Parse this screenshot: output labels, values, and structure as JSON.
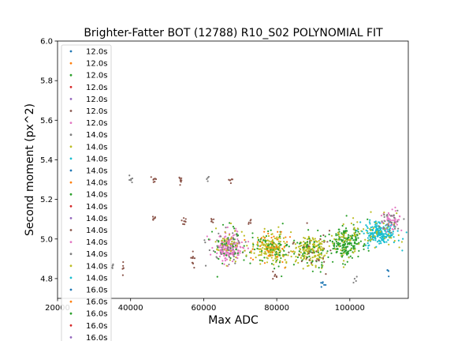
{
  "chart_data": {
    "type": "scatter",
    "title": "Brighter-Fatter BOT (12788) R10_S02 POLYNOMIAL FIT",
    "xlabel": "Max ADC",
    "ylabel": "Second moment (px^2)",
    "xlim": [
      20000,
      116000
    ],
    "ylim": [
      4.7,
      6.0
    ],
    "xticks": [
      20000,
      40000,
      60000,
      80000,
      100000
    ],
    "xtick_labels": [
      "20000",
      "40000",
      "60000",
      "80000",
      "100000"
    ],
    "yticks": [
      4.8,
      5.0,
      5.2,
      5.4,
      5.6,
      5.8,
      6.0
    ],
    "ytick_labels": [
      "4.8",
      "5.0",
      "5.2",
      "5.4",
      "5.6",
      "5.8",
      "6.0"
    ],
    "grid": false,
    "legend_position": "upper-left",
    "palette": [
      "#1f77b4",
      "#ff7f0e",
      "#2ca02c",
      "#d62728",
      "#9467bd",
      "#8c564b",
      "#e377c2",
      "#7f7f7f",
      "#bcbd22",
      "#17becf"
    ],
    "legend": [
      "12.0s",
      "12.0s",
      "12.0s",
      "12.0s",
      "12.0s",
      "12.0s",
      "12.0s",
      "14.0s",
      "14.0s",
      "14.0s",
      "14.0s",
      "14.0s",
      "14.0s",
      "14.0s",
      "14.0s",
      "14.0s",
      "14.0s",
      "14.0s",
      "14.0s",
      "14.0s",
      "16.0s",
      "16.0s",
      "16.0s",
      "16.0s",
      "16.0s"
    ],
    "clusters": [
      {
        "x": 67000,
        "y": 4.96,
        "sx": 2000,
        "sy": 0.035,
        "color": "#e377c2",
        "n": 170
      },
      {
        "x": 67000,
        "y": 4.96,
        "sx": 2600,
        "sy": 0.05,
        "color": "#7f7f7f",
        "n": 50
      },
      {
        "x": 67000,
        "y": 4.96,
        "sx": 2600,
        "sy": 0.05,
        "color": "#2ca02c",
        "n": 40
      },
      {
        "x": 67000,
        "y": 4.96,
        "sx": 2600,
        "sy": 0.05,
        "color": "#bcbd22",
        "n": 40
      },
      {
        "x": 78500,
        "y": 4.95,
        "sx": 2300,
        "sy": 0.038,
        "color": "#bcbd22",
        "n": 170
      },
      {
        "x": 78500,
        "y": 4.95,
        "sx": 3000,
        "sy": 0.05,
        "color": "#2ca02c",
        "n": 60
      },
      {
        "x": 78500,
        "y": 4.95,
        "sx": 3000,
        "sy": 0.05,
        "color": "#ff7f0e",
        "n": 40
      },
      {
        "x": 89500,
        "y": 4.945,
        "sx": 2300,
        "sy": 0.038,
        "color": "#bcbd22",
        "n": 170
      },
      {
        "x": 89500,
        "y": 4.945,
        "sx": 3000,
        "sy": 0.05,
        "color": "#2ca02c",
        "n": 60
      },
      {
        "x": 89500,
        "y": 4.945,
        "sx": 3000,
        "sy": 0.05,
        "color": "#8c564b",
        "n": 30
      },
      {
        "x": 99000,
        "y": 4.98,
        "sx": 2200,
        "sy": 0.04,
        "color": "#2ca02c",
        "n": 190
      },
      {
        "x": 99000,
        "y": 4.98,
        "sx": 2800,
        "sy": 0.05,
        "color": "#bcbd22",
        "n": 50
      },
      {
        "x": 108500,
        "y": 5.03,
        "sx": 2200,
        "sy": 0.03,
        "color": "#17becf",
        "n": 220
      },
      {
        "x": 108500,
        "y": 5.03,
        "sx": 3000,
        "sy": 0.045,
        "color": "#bcbd22",
        "n": 40
      },
      {
        "x": 111500,
        "y": 5.09,
        "sx": 1600,
        "sy": 0.025,
        "color": "#e377c2",
        "n": 50
      },
      {
        "x": 111500,
        "y": 5.09,
        "sx": 1600,
        "sy": 0.025,
        "color": "#7f7f7f",
        "n": 30
      },
      {
        "x": 40000,
        "y": 5.3,
        "sx": 300,
        "sy": 0.01,
        "color": "#7f7f7f",
        "n": 6
      },
      {
        "x": 46500,
        "y": 5.3,
        "sx": 350,
        "sy": 0.01,
        "color": "#8c564b",
        "n": 8
      },
      {
        "x": 54000,
        "y": 5.3,
        "sx": 350,
        "sy": 0.01,
        "color": "#8c564b",
        "n": 8
      },
      {
        "x": 61000,
        "y": 5.3,
        "sx": 250,
        "sy": 0.01,
        "color": "#7f7f7f",
        "n": 4
      },
      {
        "x": 67500,
        "y": 5.295,
        "sx": 300,
        "sy": 0.01,
        "color": "#8c564b",
        "n": 6
      },
      {
        "x": 46500,
        "y": 5.095,
        "sx": 300,
        "sy": 0.01,
        "color": "#8c564b",
        "n": 6
      },
      {
        "x": 54500,
        "y": 5.085,
        "sx": 350,
        "sy": 0.012,
        "color": "#8c564b",
        "n": 8
      },
      {
        "x": 57000,
        "y": 4.9,
        "sx": 400,
        "sy": 0.02,
        "color": "#8c564b",
        "n": 10
      },
      {
        "x": 62500,
        "y": 5.09,
        "sx": 400,
        "sy": 0.01,
        "color": "#8c564b",
        "n": 6
      },
      {
        "x": 72500,
        "y": 5.09,
        "sx": 400,
        "sy": 0.01,
        "color": "#8c564b",
        "n": 6
      },
      {
        "x": 35000,
        "y": 4.855,
        "sx": 300,
        "sy": 0.012,
        "color": "#7f7f7f",
        "n": 5
      },
      {
        "x": 38000,
        "y": 4.855,
        "sx": 300,
        "sy": 0.015,
        "color": "#8c564b",
        "n": 6
      },
      {
        "x": 79500,
        "y": 4.81,
        "sx": 500,
        "sy": 0.01,
        "color": "#8c564b",
        "n": 6
      },
      {
        "x": 92500,
        "y": 4.78,
        "sx": 400,
        "sy": 0.01,
        "color": "#1f77b4",
        "n": 6
      },
      {
        "x": 101500,
        "y": 4.79,
        "sx": 400,
        "sy": 0.01,
        "color": "#7f7f7f",
        "n": 4
      },
      {
        "x": 110500,
        "y": 4.84,
        "sx": 300,
        "sy": 0.01,
        "color": "#1f77b4",
        "n": 4
      }
    ]
  }
}
